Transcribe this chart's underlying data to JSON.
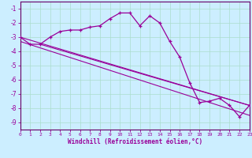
{
  "xlabel": "Windchill (Refroidissement éolien,°C)",
  "bg_color": "#cceeff",
  "grid_color": "#aaddcc",
  "line_color": "#990099",
  "spine_color": "#660066",
  "xlim": [
    0,
    23
  ],
  "ylim": [
    -9.5,
    -0.5
  ],
  "yticks": [
    -9,
    -8,
    -7,
    -6,
    -5,
    -4,
    -3,
    -2,
    -1
  ],
  "xticks": [
    0,
    1,
    2,
    3,
    4,
    5,
    6,
    7,
    8,
    9,
    10,
    11,
    12,
    13,
    14,
    15,
    16,
    17,
    18,
    19,
    20,
    21,
    22,
    23
  ],
  "curve_x": [
    0,
    1,
    2,
    3,
    4,
    5,
    6,
    7,
    8,
    9,
    10,
    11,
    12,
    13,
    14,
    15,
    16,
    17,
    18,
    19,
    20,
    21,
    22,
    23
  ],
  "curve_y": [
    -3.0,
    -3.5,
    -3.5,
    -3.0,
    -2.6,
    -2.5,
    -2.5,
    -2.3,
    -2.2,
    -1.7,
    -1.3,
    -1.3,
    -2.2,
    -1.5,
    -2.0,
    -3.3,
    -4.4,
    -6.2,
    -7.6,
    -7.5,
    -7.3,
    -7.8,
    -8.6,
    -7.8
  ],
  "line1_x": [
    0,
    23
  ],
  "line1_y": [
    -3.0,
    -7.8
  ],
  "line2_x": [
    0,
    23
  ],
  "line2_y": [
    -3.3,
    -8.5
  ],
  "line3_x": [
    2,
    23
  ],
  "line3_y": [
    -3.5,
    -7.8
  ]
}
